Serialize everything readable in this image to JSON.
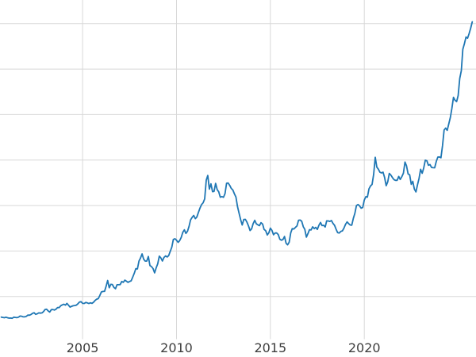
{
  "chart_data": {
    "type": "line",
    "title": "",
    "xlabel": "",
    "ylabel": "",
    "grid": true,
    "legend": "none",
    "background_color": "#ffffff",
    "grid_color": "#d8d8d8",
    "line_color": "#1f77b4",
    "tick_label_color": "#3d3d3d",
    "x_range": [
      2000.6,
      2025.95
    ],
    "y_range": [
      0,
      3760
    ],
    "x_ticks": [
      {
        "value": 2005,
        "label": "2005"
      },
      {
        "value": 2010,
        "label": "2010"
      },
      {
        "value": 2015,
        "label": "2015"
      },
      {
        "value": 2020,
        "label": "2020"
      }
    ],
    "y_gridlines": [
      500,
      1000,
      1500,
      2000,
      2500,
      3000,
      3500
    ],
    "series": [
      {
        "name": "value",
        "x_start": 2000.667,
        "x_step_years": 0.0833333,
        "values": [
          273,
          270,
          266,
          272,
          266,
          262,
          263,
          260,
          272,
          270,
          267,
          272,
          284,
          283,
          276,
          276,
          281,
          295,
          294,
          302,
          314,
          321,
          304,
          310,
          319,
          317,
          319,
          333,
          357,
          359,
          340,
          328,
          355,
          356,
          351,
          360,
          379,
          378,
          398,
          407,
          414,
          405,
          424,
          403,
          383,
          392,
          398,
          400,
          405,
          420,
          439,
          442,
          424,
          423,
          434,
          429,
          422,
          430,
          424,
          437,
          456,
          470,
          476,
          510,
          550,
          555,
          557,
          611,
          675,
          596,
          633,
          632,
          599,
          585,
          629,
          629,
          631,
          665,
          655,
          680,
          667,
          655,
          665,
          672,
          713,
          754,
          806,
          803,
          890,
          922,
          968,
          910,
          889,
          889,
          940,
          839,
          829,
          807,
          760,
          816,
          858,
          943,
          924,
          890,
          929,
          946,
          934,
          949,
          996,
          1043,
          1127,
          1135,
          1118,
          1095,
          1113,
          1148,
          1205,
          1233,
          1193,
          1216,
          1271,
          1342,
          1370,
          1391,
          1356,
          1373,
          1424,
          1473,
          1511,
          1529,
          1573,
          1780,
          1830,
          1680,
          1739,
          1652,
          1656,
          1743,
          1674,
          1651,
          1591,
          1598,
          1590,
          1630,
          1745,
          1747,
          1721,
          1688,
          1671,
          1628,
          1593,
          1487,
          1414,
          1343,
          1286,
          1347,
          1348,
          1316,
          1276,
          1225,
          1244,
          1301,
          1337,
          1299,
          1288,
          1279,
          1311,
          1296,
          1237,
          1223,
          1176,
          1200,
          1251,
          1227,
          1179,
          1198,
          1199,
          1181,
          1130,
          1118,
          1125,
          1159,
          1086,
          1068,
          1097,
          1200,
          1246,
          1242,
          1260,
          1276,
          1337,
          1340,
          1327,
          1267,
          1238,
          1152,
          1192,
          1234,
          1231,
          1266,
          1246,
          1260,
          1237,
          1283,
          1314,
          1280,
          1282,
          1264,
          1331,
          1330,
          1325,
          1335,
          1303,
          1282,
          1238,
          1201,
          1198,
          1215,
          1221,
          1250,
          1292,
          1320,
          1301,
          1286,
          1284,
          1359,
          1413,
          1500,
          1511,
          1495,
          1471,
          1479,
          1561,
          1597,
          1592,
          1683,
          1716,
          1732,
          1843,
          2030,
          1922,
          1900,
          1866,
          1858,
          1867,
          1808,
          1718,
          1762,
          1853,
          1835,
          1807,
          1784,
          1777,
          1777,
          1820,
          1787,
          1817,
          1856,
          1978,
          1937,
          1848,
          1837,
          1733,
          1766,
          1681,
          1650,
          1726,
          1798,
          1898,
          1855,
          1913,
          1999,
          1992,
          1943,
          1951,
          1918,
          1916,
          1915,
          1984,
          2033,
          2034,
          2025,
          2158,
          2330,
          2351,
          2327,
          2398,
          2470,
          2568,
          2690,
          2657,
          2643,
          2709,
          2897,
          2983,
          3218,
          3280,
          3353,
          3340,
          3390,
          3450,
          3520
        ]
      }
    ]
  }
}
